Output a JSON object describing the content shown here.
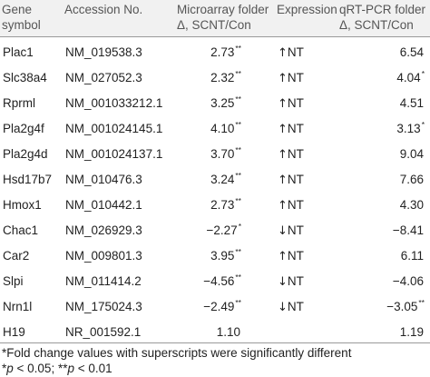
{
  "table": {
    "headers": {
      "gene": [
        "Gene",
        "symbol"
      ],
      "accession": "Accession No.",
      "microarray": [
        "Microarray folder",
        "Δ, SCNT/Con"
      ],
      "expression": "Expression",
      "qrt": [
        "qRT-PCR folder",
        "Δ, SCNT/Con"
      ]
    },
    "rows": [
      {
        "gene": "Plac1",
        "accession": "NM_019538.3",
        "micro": "2.73",
        "micro_sup": "**",
        "arrow": "↑",
        "expr": "NT",
        "qrt": "6.54",
        "qrt_sup": ""
      },
      {
        "gene": "Slc38a4",
        "accession": "NM_027052.3",
        "micro": "2.32",
        "micro_sup": "**",
        "arrow": "↑",
        "expr": "NT",
        "qrt": "4.04",
        "qrt_sup": "*"
      },
      {
        "gene": "Rprml",
        "accession": "NM_001033212.1",
        "micro": "3.25",
        "micro_sup": "**",
        "arrow": "↑",
        "expr": "NT",
        "qrt": "4.51",
        "qrt_sup": ""
      },
      {
        "gene": "Pla2g4f",
        "accession": "NM_001024145.1",
        "micro": "4.10",
        "micro_sup": "**",
        "arrow": "↑",
        "expr": "NT",
        "qrt": "3.13",
        "qrt_sup": "*"
      },
      {
        "gene": "Pla2g4d",
        "accession": "NM_001024137.1",
        "micro": "3.70",
        "micro_sup": "**",
        "arrow": "↑",
        "expr": "NT",
        "qrt": "9.04",
        "qrt_sup": ""
      },
      {
        "gene": "Hsd17b7",
        "accession": "NM_010476.3",
        "micro": "3.24",
        "micro_sup": "**",
        "arrow": "↑",
        "expr": "NT",
        "qrt": "7.66",
        "qrt_sup": ""
      },
      {
        "gene": "Hmox1",
        "accession": "NM_010442.1",
        "micro": "2.73",
        "micro_sup": "**",
        "arrow": "↑",
        "expr": "NT",
        "qrt": "4.30",
        "qrt_sup": ""
      },
      {
        "gene": "Chac1",
        "accession": "NM_026929.3",
        "micro": "−2.27",
        "micro_sup": "*",
        "arrow": "↓",
        "expr": "NT",
        "qrt": "−8.41",
        "qrt_sup": ""
      },
      {
        "gene": "Car2",
        "accession": "NM_009801.3",
        "micro": "3.95",
        "micro_sup": "**",
        "arrow": "↑",
        "expr": "NT",
        "qrt": "6.11",
        "qrt_sup": ""
      },
      {
        "gene": "Slpi",
        "accession": "NM_011414.2",
        "micro": "−4.56",
        "micro_sup": "**",
        "arrow": "↓",
        "expr": "NT",
        "qrt": "−4.06",
        "qrt_sup": ""
      },
      {
        "gene": "Nrn1l",
        "accession": "NM_175024.3",
        "micro": "−2.49",
        "micro_sup": "**",
        "arrow": "↓",
        "expr": "NT",
        "qrt": "−3.05",
        "qrt_sup": "**"
      },
      {
        "gene": "H19",
        "accession": "NR_001592.1",
        "micro": "1.10",
        "micro_sup": "",
        "arrow": "",
        "expr": "",
        "qrt": "1.19",
        "qrt_sup": ""
      }
    ]
  },
  "footnotes": {
    "line1": "*Fold change values with superscripts were significantly different",
    "line2": {
      "s1": "*",
      "p1": "p",
      "t1": " < 0.05; **",
      "p2": "p",
      "t2": " < 0.01"
    }
  }
}
